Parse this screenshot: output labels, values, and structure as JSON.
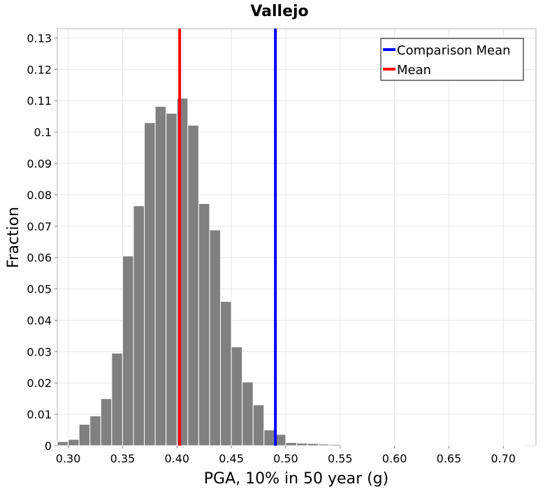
{
  "chart_data": {
    "type": "bar",
    "title": "Vallejo",
    "xlabel": "PGA, 10% in 50 year (g)",
    "ylabel": "Fraction",
    "xlim": [
      0.29,
      0.73
    ],
    "ylim": [
      0,
      0.133
    ],
    "x_ticks": [
      0.3,
      0.35,
      0.4,
      0.45,
      0.5,
      0.55,
      0.6,
      0.65,
      0.7
    ],
    "x_tick_labels": [
      "0.30",
      "0.35",
      "0.40",
      "0.45",
      "0.50",
      "0.55",
      "0.60",
      "0.65",
      "0.70"
    ],
    "y_ticks": [
      0,
      0.01,
      0.02,
      0.03,
      0.04,
      0.05,
      0.06,
      0.07,
      0.08,
      0.09,
      0.1,
      0.11,
      0.12,
      0.13
    ],
    "y_tick_labels": [
      "0",
      "0.01",
      "0.02",
      "0.03",
      "0.04",
      "0.05",
      "0.06",
      "0.07",
      "0.08",
      "0.09",
      "0.1",
      "0.11",
      "0.12",
      "0.13"
    ],
    "grid": true,
    "bin_width": 0.01,
    "bin_centers": [
      0.295,
      0.305,
      0.315,
      0.325,
      0.335,
      0.345,
      0.355,
      0.365,
      0.375,
      0.385,
      0.395,
      0.405,
      0.415,
      0.425,
      0.435,
      0.445,
      0.455,
      0.465,
      0.475,
      0.485,
      0.495,
      0.505,
      0.515,
      0.525,
      0.535,
      0.545,
      0.555,
      0.565,
      0.575,
      0.585,
      0.595,
      0.605,
      0.615,
      0.625,
      0.635,
      0.645,
      0.655,
      0.665,
      0.675,
      0.685,
      0.695,
      0.705,
      0.715
    ],
    "values": [
      0.0013,
      0.002,
      0.0068,
      0.0095,
      0.015,
      0.0295,
      0.0605,
      0.0765,
      0.103,
      0.1082,
      0.106,
      0.1108,
      0.1022,
      0.0772,
      0.0688,
      0.046,
      0.0315,
      0.0203,
      0.013,
      0.005,
      0.0036,
      0.001,
      0.0008,
      0.0007,
      0.0005,
      0.0004,
      0.0002,
      0.0001,
      0.0001,
      0.0001,
      0.0001,
      0.0001,
      0.0001,
      0.0001,
      0.0001,
      0.0001,
      0.0001,
      0.0001,
      0.0001,
      0.0001,
      0.0001,
      0.0001,
      0.0001
    ],
    "bar_color": "#808080",
    "vertical_lines": [
      {
        "name": "Comparison Mean",
        "x": 0.4905,
        "color": "#0000ff"
      },
      {
        "name": "Mean",
        "x": 0.4025,
        "color": "#ff0000"
      }
    ],
    "legend_position": "top-right"
  }
}
